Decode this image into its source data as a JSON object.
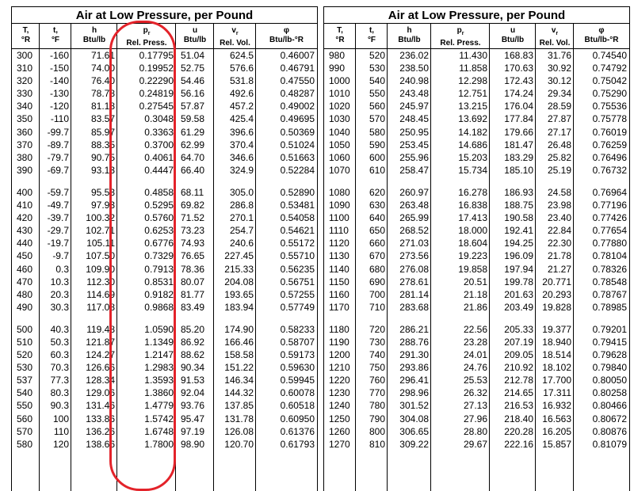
{
  "left_table": {
    "title": "Air at Low Pressure, per Pound",
    "headers": [
      {
        "sym": "T,",
        "unit": "°R"
      },
      {
        "sym": "t,",
        "unit": "°F"
      },
      {
        "sym": "h",
        "unit": "Btu/lb"
      },
      {
        "sym": "pr",
        "unit": "Rel. Press."
      },
      {
        "sym": "u",
        "unit": "Btu/lb"
      },
      {
        "sym": "vr",
        "unit": "Rel. Vol."
      },
      {
        "sym": "φ",
        "unit": "Btu/lb-°R"
      }
    ],
    "groups": [
      [
        [
          "300",
          "-160",
          "71.61",
          "0.17795",
          "51.04",
          "624.5",
          "0.46007"
        ],
        [
          "310",
          "-150",
          "74.00",
          "0.19952",
          "52.75",
          "576.6",
          "0.46791"
        ],
        [
          "320",
          "-140",
          "76.40",
          "0.22290",
          "54.46",
          "531.8",
          "0.47550"
        ],
        [
          "330",
          "-130",
          "78.78",
          "0.24819",
          "56.16",
          "492.6",
          "0.48287"
        ],
        [
          "340",
          "-120",
          "81.18",
          "0.27545",
          "57.87",
          "457.2",
          "0.49002"
        ],
        [
          "350",
          "-110",
          "83.57",
          "0.3048",
          "59.58",
          "425.4",
          "0.49695"
        ],
        [
          "360",
          "-99.7",
          "85.97",
          "0.3363",
          "61.29",
          "396.6",
          "0.50369"
        ],
        [
          "370",
          "-89.7",
          "88.35",
          "0.3700",
          "62.99",
          "370.4",
          "0.51024"
        ],
        [
          "380",
          "-79.7",
          "90.75",
          "0.4061",
          "64.70",
          "346.6",
          "0.51663"
        ],
        [
          "390",
          "-69.7",
          "93.13",
          "0.4447",
          "66.40",
          "324.9",
          "0.52284"
        ]
      ],
      [
        [
          "400",
          "-59.7",
          "95.53",
          "0.4858",
          "68.11",
          "305.0",
          "0.52890"
        ],
        [
          "410",
          "-49.7",
          "97.93",
          "0.5295",
          "69.82",
          "286.8",
          "0.53481"
        ],
        [
          "420",
          "-39.7",
          "100.32",
          "0.5760",
          "71.52",
          "270.1",
          "0.54058"
        ],
        [
          "430",
          "-29.7",
          "102.71",
          "0.6253",
          "73.23",
          "254.7",
          "0.54621"
        ],
        [
          "440",
          "-19.7",
          "105.11",
          "0.6776",
          "74.93",
          "240.6",
          "0.55172"
        ],
        [
          "450",
          "-9.7",
          "107.50",
          "0.7329",
          "76.65",
          "227.45",
          "0.55710"
        ],
        [
          "460",
          "0.3",
          "109.90",
          "0.7913",
          "78.36",
          "215.33",
          "0.56235"
        ],
        [
          "470",
          "10.3",
          "112.30",
          "0.8531",
          "80.07",
          "204.08",
          "0.56751"
        ],
        [
          "480",
          "20.3",
          "114.69",
          "0.9182",
          "81.77",
          "193.65",
          "0.57255"
        ],
        [
          "490",
          "30.3",
          "117.08",
          "0.9868",
          "83.49",
          "183.94",
          "0.57749"
        ]
      ],
      [
        [
          "500",
          "40.3",
          "119.48",
          "1.0590",
          "85.20",
          "174.90",
          "0.58233"
        ],
        [
          "510",
          "50.3",
          "121.87",
          "1.1349",
          "86.92",
          "166.46",
          "0.58707"
        ],
        [
          "520",
          "60.3",
          "124.27",
          "1.2147",
          "88.62",
          "158.58",
          "0.59173"
        ],
        [
          "530",
          "70.3",
          "126.66",
          "1.2983",
          "90.34",
          "151.22",
          "0.59630"
        ],
        [
          "537",
          "77.3",
          "128.34",
          "1.3593",
          "91.53",
          "146.34",
          "0.59945"
        ],
        [
          "540",
          "80.3",
          "129.06",
          "1.3860",
          "92.04",
          "144.32",
          "0.60078"
        ],
        [
          "550",
          "90.3",
          "131.46",
          "1.4779",
          "93.76",
          "137.85",
          "0.60518"
        ],
        [
          "560",
          "100",
          "133.86",
          "1.5742",
          "95.47",
          "131.78",
          "0.60950"
        ],
        [
          "570",
          "110",
          "136.26",
          "1.6748",
          "97.19",
          "126.08",
          "0.61376"
        ],
        [
          "580",
          "120",
          "138.66",
          "1.7800",
          "98.90",
          "120.70",
          "0.61793"
        ]
      ]
    ]
  },
  "right_table": {
    "title": "Air at Low Pressure, per Pound",
    "headers": [
      {
        "sym": "T,",
        "unit": "°R"
      },
      {
        "sym": "t,",
        "unit": "°F"
      },
      {
        "sym": "h",
        "unit": "Btu/lb"
      },
      {
        "sym": "pr",
        "unit": "Rel. Press."
      },
      {
        "sym": "u",
        "unit": "Btu/lb"
      },
      {
        "sym": "vr",
        "unit": "Rel. Vol."
      },
      {
        "sym": "φ",
        "unit": "Btu/lb-°R"
      }
    ],
    "groups": [
      [
        [
          "980",
          "520",
          "236.02",
          "11.430",
          "168.83",
          "31.76",
          "0.74540"
        ],
        [
          "990",
          "530",
          "238.50",
          "11.858",
          "170.63",
          "30.92",
          "0.74792"
        ],
        [
          "1000",
          "540",
          "240.98",
          "12.298",
          "172.43",
          "30.12",
          "0.75042"
        ],
        [
          "1010",
          "550",
          "243.48",
          "12.751",
          "174.24",
          "29.34",
          "0.75290"
        ],
        [
          "1020",
          "560",
          "245.97",
          "13.215",
          "176.04",
          "28.59",
          "0.75536"
        ],
        [
          "1030",
          "570",
          "248.45",
          "13.692",
          "177.84",
          "27.87",
          "0.75778"
        ],
        [
          "1040",
          "580",
          "250.95",
          "14.182",
          "179.66",
          "27.17",
          "0.76019"
        ],
        [
          "1050",
          "590",
          "253.45",
          "14.686",
          "181.47",
          "26.48",
          "0.76259"
        ],
        [
          "1060",
          "600",
          "255.96",
          "15.203",
          "183.29",
          "25.82",
          "0.76496"
        ],
        [
          "1070",
          "610",
          "258.47",
          "15.734",
          "185.10",
          "25.19",
          "0.76732"
        ]
      ],
      [
        [
          "1080",
          "620",
          "260.97",
          "16.278",
          "186.93",
          "24.58",
          "0.76964"
        ],
        [
          "1090",
          "630",
          "263.48",
          "16.838",
          "188.75",
          "23.98",
          "0.77196"
        ],
        [
          "1100",
          "640",
          "265.99",
          "17.413",
          "190.58",
          "23.40",
          "0.77426"
        ],
        [
          "1110",
          "650",
          "268.52",
          "18.000",
          "192.41",
          "22.84",
          "0.77654"
        ],
        [
          "1120",
          "660",
          "271.03",
          "18.604",
          "194.25",
          "22.30",
          "0.77880"
        ],
        [
          "1130",
          "670",
          "273.56",
          "19.223",
          "196.09",
          "21.78",
          "0.78104"
        ],
        [
          "1140",
          "680",
          "276.08",
          "19.858",
          "197.94",
          "21.27",
          "0.78326"
        ],
        [
          "1150",
          "690",
          "278.61",
          "20.51",
          "199.78",
          "20.771",
          "0.78548"
        ],
        [
          "1160",
          "700",
          "281.14",
          "21.18",
          "201.63",
          "20.293",
          "0.78767"
        ],
        [
          "1170",
          "710",
          "283.68",
          "21.86",
          "203.49",
          "19.828",
          "0.78985"
        ]
      ],
      [
        [
          "1180",
          "720",
          "286.21",
          "22.56",
          "205.33",
          "19.377",
          "0.79201"
        ],
        [
          "1190",
          "730",
          "288.76",
          "23.28",
          "207.19",
          "18.940",
          "0.79415"
        ],
        [
          "1200",
          "740",
          "291.30",
          "24.01",
          "209.05",
          "18.514",
          "0.79628"
        ],
        [
          "1210",
          "750",
          "293.86",
          "24.76",
          "210.92",
          "18.102",
          "0.79840"
        ],
        [
          "1220",
          "760",
          "296.41",
          "25.53",
          "212.78",
          "17.700",
          "0.80050"
        ],
        [
          "1230",
          "770",
          "298.96",
          "26.32",
          "214.65",
          "17.311",
          "0.80258"
        ],
        [
          "1240",
          "780",
          "301.52",
          "27.13",
          "216.53",
          "16.932",
          "0.80466"
        ],
        [
          "1250",
          "790",
          "304.08",
          "27.96",
          "218.40",
          "16.563",
          "0.80672"
        ],
        [
          "1260",
          "800",
          "306.65",
          "28.80",
          "220.28",
          "16.205",
          "0.80876"
        ],
        [
          "1270",
          "810",
          "309.22",
          "29.67",
          "222.16",
          "15.857",
          "0.81079"
        ]
      ]
    ]
  },
  "annotation": {
    "color": "#e3232a"
  }
}
